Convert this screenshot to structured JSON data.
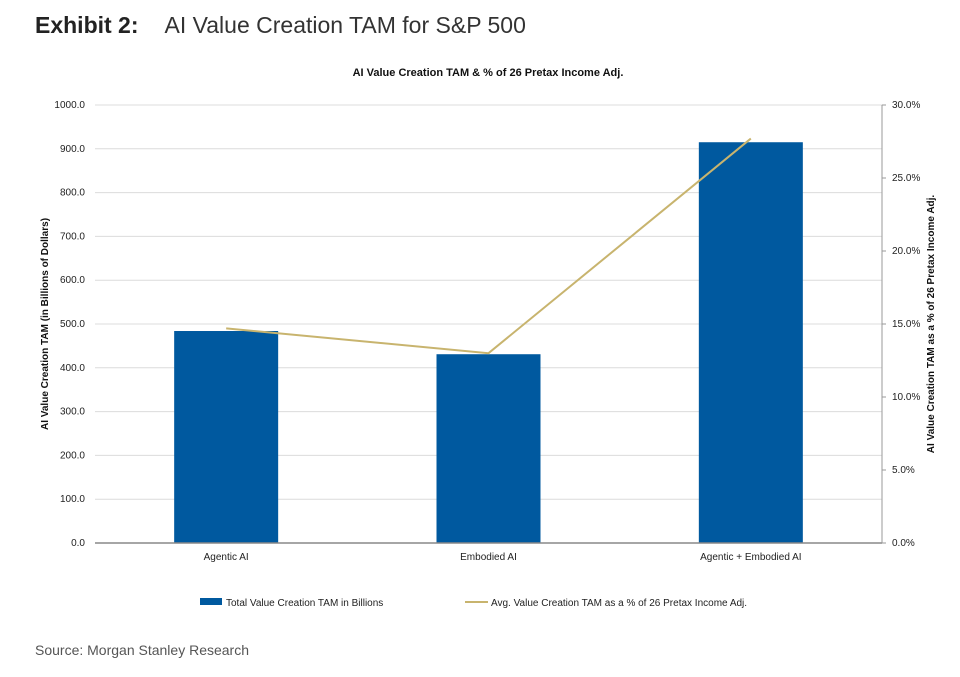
{
  "header": {
    "exhibit_label": "Exhibit 2:",
    "exhibit_title": "AI Value Creation TAM for S&P 500"
  },
  "source": "Source: Morgan Stanley Research",
  "chart_data": {
    "type": "bar",
    "title": "AI Value Creation TAM & % of 26 Pretax Income Adj.",
    "categories": [
      "Agentic AI",
      "Embodied AI",
      "Agentic + Embodied AI"
    ],
    "ylabel": "AI Value Creation TAM (in Billions of Dollars)",
    "y2label": "AI Value Creation TAM as a % of 26 Pretax Income Adj.",
    "ylim": [
      0,
      1000
    ],
    "y2lim": [
      0,
      30
    ],
    "yticks": [
      "0.0",
      "100.0",
      "200.0",
      "300.0",
      "400.0",
      "500.0",
      "600.0",
      "700.0",
      "800.0",
      "900.0",
      "1000.0"
    ],
    "y2ticks": [
      "0.0%",
      "5.0%",
      "10.0%",
      "15.0%",
      "20.0%",
      "25.0%",
      "30.0%"
    ],
    "grid": true,
    "legend_position": "bottom",
    "series": [
      {
        "name": "Total Value Creation TAM in Billions",
        "type": "bar",
        "axis": "left",
        "color": "#00599f",
        "values": [
          484,
          431,
          915
        ]
      },
      {
        "name": "Avg. Value Creation TAM as a % of 26 Pretax Income Adj.",
        "type": "line",
        "axis": "right",
        "color": "#c8b46e",
        "values": [
          14.7,
          13.0,
          27.7
        ]
      }
    ]
  }
}
